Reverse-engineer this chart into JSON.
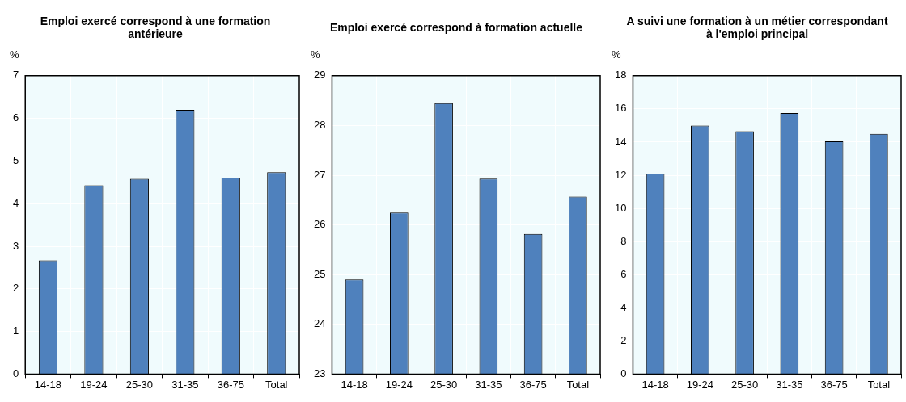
{
  "chart_data": [
    {
      "type": "bar",
      "title": "Emploi exercé correspond à une formation antérieure",
      "ylabel": "%",
      "categories": [
        "14-18",
        "19-24",
        "25-30",
        "31-35",
        "36-75",
        "Total"
      ],
      "values": [
        2.67,
        4.43,
        4.58,
        6.2,
        4.61,
        4.74
      ],
      "color": "#4f81bd",
      "ylim": [
        0,
        7
      ],
      "yticks": [
        0,
        1,
        2,
        3,
        4,
        5,
        6,
        7
      ],
      "grid": true
    },
    {
      "type": "bar",
      "title": "Emploi exercé correspond à formation actuelle",
      "ylabel": "%",
      "categories": [
        "14-18",
        "19-24",
        "25-30",
        "31-35",
        "36-75",
        "Total"
      ],
      "values": [
        24.9,
        26.25,
        28.45,
        26.93,
        25.82,
        26.57
      ],
      "color": "#4f81bd",
      "ylim": [
        23,
        29
      ],
      "yticks": [
        23,
        24,
        25,
        26,
        27,
        28,
        29
      ],
      "grid": true
    },
    {
      "type": "bar",
      "title": "A suivi une formation à un métier correspondant à l'emploi principal",
      "ylabel": "%",
      "categories": [
        "14-18",
        "19-24",
        "25-30",
        "31-35",
        "36-75",
        "Total"
      ],
      "values": [
        12.1,
        15.0,
        14.65,
        15.75,
        14.05,
        14.5
      ],
      "color": "#4f81bd",
      "ylim": [
        0,
        18
      ],
      "yticks": [
        0,
        2,
        4,
        6,
        8,
        10,
        12,
        14,
        16,
        18
      ],
      "grid": true
    }
  ]
}
